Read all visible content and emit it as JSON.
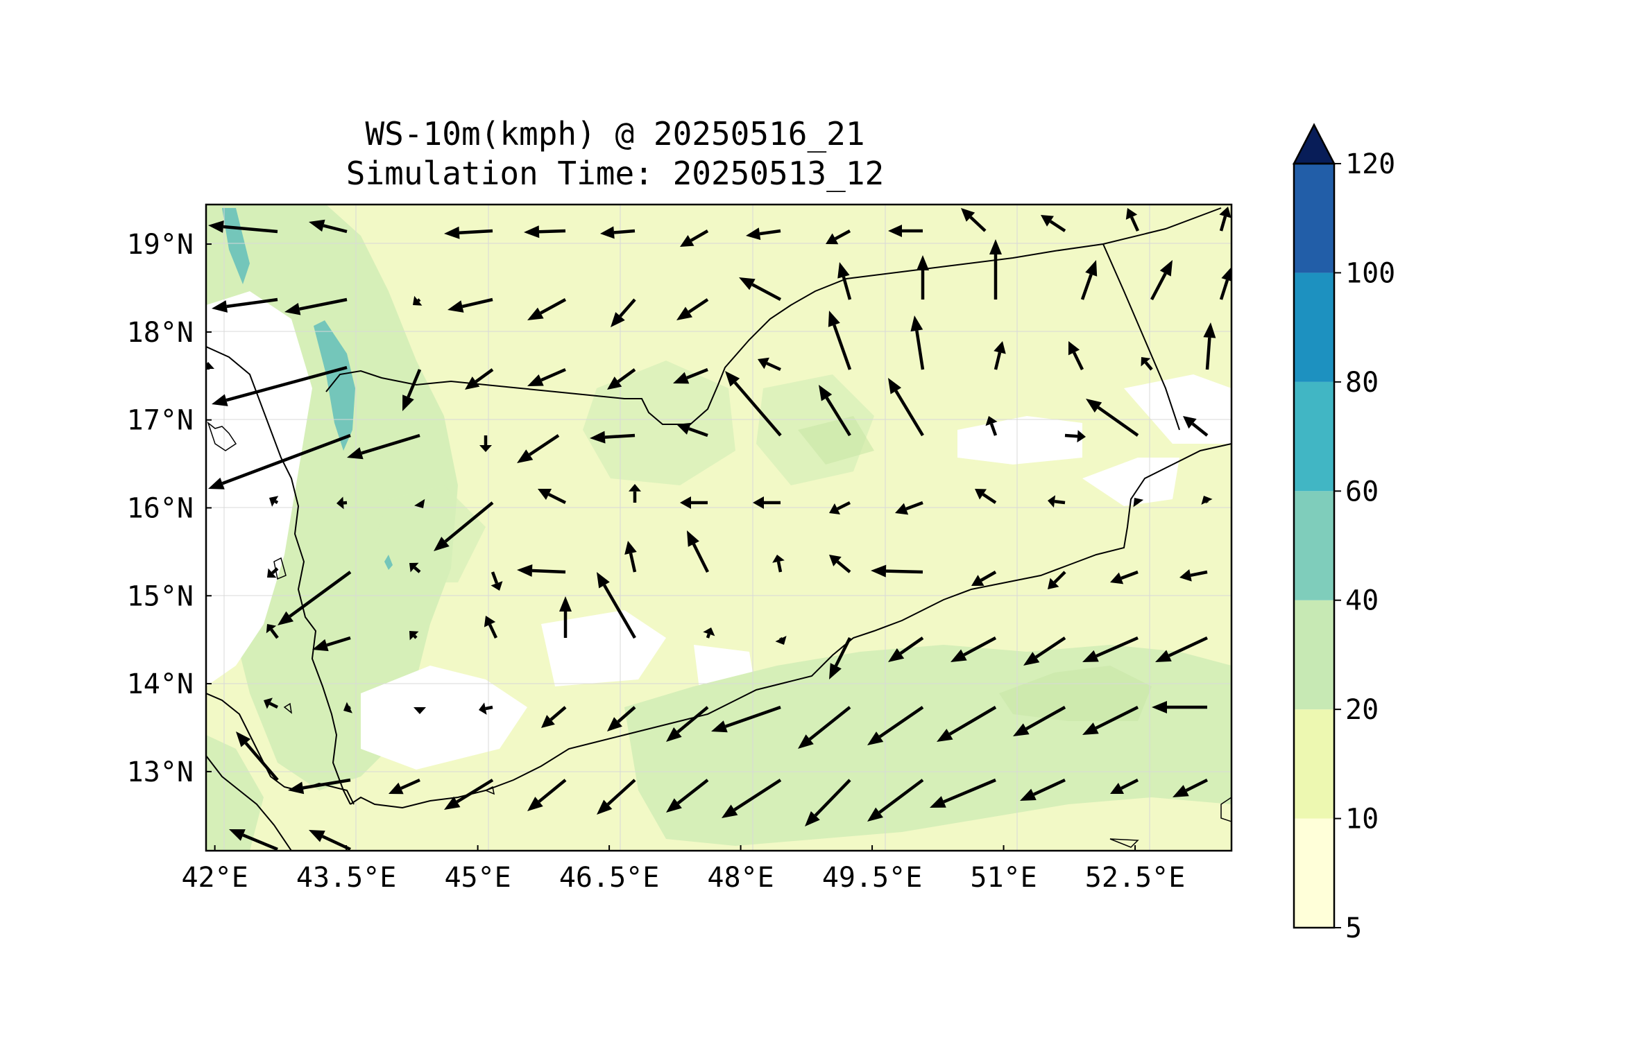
{
  "title": "WS-10m(kmph) @ 20250516_21",
  "subtitle": "Simulation Time: 20250513_12",
  "map": {
    "lon_range": [
      41.9,
      53.6
    ],
    "lat_range": [
      12.1,
      19.45
    ],
    "x_ticks": [
      {
        "value": 42.0,
        "label": "42°E"
      },
      {
        "value": 43.5,
        "label": "43.5°E"
      },
      {
        "value": 45.0,
        "label": "45°E"
      },
      {
        "value": 46.5,
        "label": "46.5°E"
      },
      {
        "value": 48.0,
        "label": "48°E"
      },
      {
        "value": 49.5,
        "label": "49.5°E"
      },
      {
        "value": 51.0,
        "label": "51°E"
      },
      {
        "value": 52.5,
        "label": "52.5°E"
      }
    ],
    "y_ticks": [
      {
        "value": 19,
        "label": "19°N"
      },
      {
        "value": 18,
        "label": "18°N"
      },
      {
        "value": 17,
        "label": "17°N"
      },
      {
        "value": 16,
        "label": "16°N"
      },
      {
        "value": 15,
        "label": "15°N"
      },
      {
        "value": 14,
        "label": "14°N"
      },
      {
        "value": 13,
        "label": "13°N"
      }
    ]
  },
  "colorbar": {
    "levels": [
      {
        "value": 5,
        "label": "5"
      },
      {
        "value": 10,
        "label": "10"
      },
      {
        "value": 20,
        "label": "20"
      },
      {
        "value": 40,
        "label": "40"
      },
      {
        "value": 60,
        "label": "60"
      },
      {
        "value": 80,
        "label": "80"
      },
      {
        "value": 100,
        "label": "100"
      },
      {
        "value": 120,
        "label": "120"
      }
    ],
    "colors": [
      "#ffffd9",
      "#edf8b1",
      "#c7e9b4",
      "#7fcdbb",
      "#41b6c4",
      "#1d91c0",
      "#225ea8",
      "#253494"
    ],
    "extend_color": "#081d58"
  },
  "colors": {
    "land_bg": "#f1f9c4",
    "sea_bg": "#f5fbcc",
    "band_20_40": "#d4eeb4",
    "band_40_60": "#74c6ba",
    "calm_under_5": "#ffffff"
  }
}
